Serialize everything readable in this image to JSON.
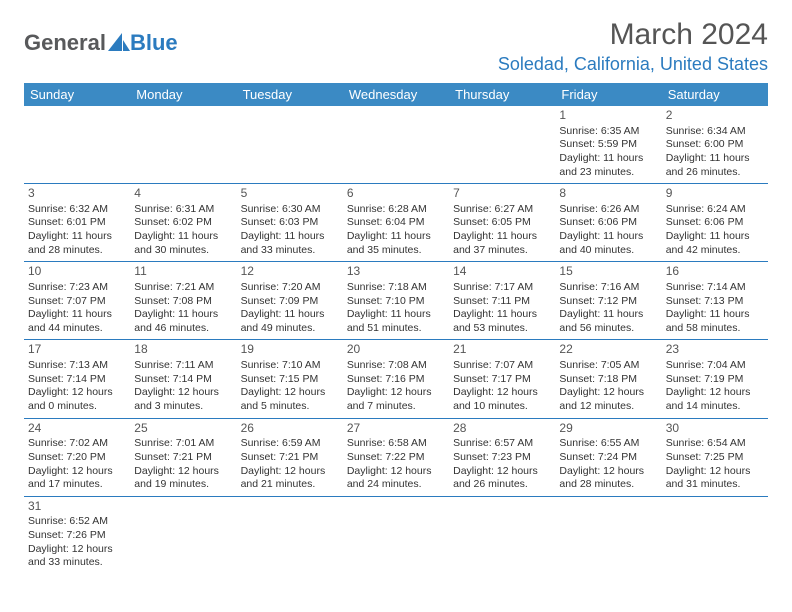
{
  "logo": {
    "text1": "General",
    "text2": "Blue"
  },
  "title": "March 2024",
  "location": "Soledad, California, United States",
  "header_bg": "#3b8ac4",
  "header_fg": "#ffffff",
  "rule_color": "#2b7bbf",
  "days": [
    "Sunday",
    "Monday",
    "Tuesday",
    "Wednesday",
    "Thursday",
    "Friday",
    "Saturday"
  ],
  "weeks": [
    [
      null,
      null,
      null,
      null,
      null,
      {
        "n": "1",
        "sr": "6:35 AM",
        "ss": "5:59 PM",
        "dl": "11 hours and 23 minutes."
      },
      {
        "n": "2",
        "sr": "6:34 AM",
        "ss": "6:00 PM",
        "dl": "11 hours and 26 minutes."
      }
    ],
    [
      {
        "n": "3",
        "sr": "6:32 AM",
        "ss": "6:01 PM",
        "dl": "11 hours and 28 minutes."
      },
      {
        "n": "4",
        "sr": "6:31 AM",
        "ss": "6:02 PM",
        "dl": "11 hours and 30 minutes."
      },
      {
        "n": "5",
        "sr": "6:30 AM",
        "ss": "6:03 PM",
        "dl": "11 hours and 33 minutes."
      },
      {
        "n": "6",
        "sr": "6:28 AM",
        "ss": "6:04 PM",
        "dl": "11 hours and 35 minutes."
      },
      {
        "n": "7",
        "sr": "6:27 AM",
        "ss": "6:05 PM",
        "dl": "11 hours and 37 minutes."
      },
      {
        "n": "8",
        "sr": "6:26 AM",
        "ss": "6:06 PM",
        "dl": "11 hours and 40 minutes."
      },
      {
        "n": "9",
        "sr": "6:24 AM",
        "ss": "6:06 PM",
        "dl": "11 hours and 42 minutes."
      }
    ],
    [
      {
        "n": "10",
        "sr": "7:23 AM",
        "ss": "7:07 PM",
        "dl": "11 hours and 44 minutes."
      },
      {
        "n": "11",
        "sr": "7:21 AM",
        "ss": "7:08 PM",
        "dl": "11 hours and 46 minutes."
      },
      {
        "n": "12",
        "sr": "7:20 AM",
        "ss": "7:09 PM",
        "dl": "11 hours and 49 minutes."
      },
      {
        "n": "13",
        "sr": "7:18 AM",
        "ss": "7:10 PM",
        "dl": "11 hours and 51 minutes."
      },
      {
        "n": "14",
        "sr": "7:17 AM",
        "ss": "7:11 PM",
        "dl": "11 hours and 53 minutes."
      },
      {
        "n": "15",
        "sr": "7:16 AM",
        "ss": "7:12 PM",
        "dl": "11 hours and 56 minutes."
      },
      {
        "n": "16",
        "sr": "7:14 AM",
        "ss": "7:13 PM",
        "dl": "11 hours and 58 minutes."
      }
    ],
    [
      {
        "n": "17",
        "sr": "7:13 AM",
        "ss": "7:14 PM",
        "dl": "12 hours and 0 minutes."
      },
      {
        "n": "18",
        "sr": "7:11 AM",
        "ss": "7:14 PM",
        "dl": "12 hours and 3 minutes."
      },
      {
        "n": "19",
        "sr": "7:10 AM",
        "ss": "7:15 PM",
        "dl": "12 hours and 5 minutes."
      },
      {
        "n": "20",
        "sr": "7:08 AM",
        "ss": "7:16 PM",
        "dl": "12 hours and 7 minutes."
      },
      {
        "n": "21",
        "sr": "7:07 AM",
        "ss": "7:17 PM",
        "dl": "12 hours and 10 minutes."
      },
      {
        "n": "22",
        "sr": "7:05 AM",
        "ss": "7:18 PM",
        "dl": "12 hours and 12 minutes."
      },
      {
        "n": "23",
        "sr": "7:04 AM",
        "ss": "7:19 PM",
        "dl": "12 hours and 14 minutes."
      }
    ],
    [
      {
        "n": "24",
        "sr": "7:02 AM",
        "ss": "7:20 PM",
        "dl": "12 hours and 17 minutes."
      },
      {
        "n": "25",
        "sr": "7:01 AM",
        "ss": "7:21 PM",
        "dl": "12 hours and 19 minutes."
      },
      {
        "n": "26",
        "sr": "6:59 AM",
        "ss": "7:21 PM",
        "dl": "12 hours and 21 minutes."
      },
      {
        "n": "27",
        "sr": "6:58 AM",
        "ss": "7:22 PM",
        "dl": "12 hours and 24 minutes."
      },
      {
        "n": "28",
        "sr": "6:57 AM",
        "ss": "7:23 PM",
        "dl": "12 hours and 26 minutes."
      },
      {
        "n": "29",
        "sr": "6:55 AM",
        "ss": "7:24 PM",
        "dl": "12 hours and 28 minutes."
      },
      {
        "n": "30",
        "sr": "6:54 AM",
        "ss": "7:25 PM",
        "dl": "12 hours and 31 minutes."
      }
    ],
    [
      {
        "n": "31",
        "sr": "6:52 AM",
        "ss": "7:26 PM",
        "dl": "12 hours and 33 minutes."
      },
      null,
      null,
      null,
      null,
      null,
      null
    ]
  ],
  "labels": {
    "sunrise": "Sunrise: ",
    "sunset": "Sunset: ",
    "daylight": "Daylight: "
  }
}
